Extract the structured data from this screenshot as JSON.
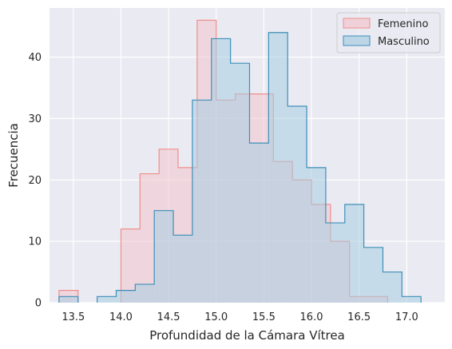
{
  "chart_data": {
    "type": "histogram",
    "xlabel": "Profundidad de la Cámara Vítrea",
    "ylabel": "Frecuencia",
    "xlim": [
      13.25,
      17.4
    ],
    "ylim": [
      0,
      48
    ],
    "xticks": [
      "13.5",
      "14.0",
      "14.5",
      "15.0",
      "15.5",
      "16.0",
      "16.5",
      "17.0"
    ],
    "yticks": [
      "0",
      "10",
      "20",
      "30",
      "40"
    ],
    "grid": true,
    "legend_position": "top-right",
    "series": [
      {
        "name": "Femenino",
        "color": "#f08f89",
        "fill": "#f2c5cd",
        "bins": [
          {
            "x0": 13.35,
            "x1": 13.55,
            "count": 2
          },
          {
            "x0": 14.0,
            "x1": 14.2,
            "count": 12
          },
          {
            "x0": 14.2,
            "x1": 14.4,
            "count": 21
          },
          {
            "x0": 14.4,
            "x1": 14.6,
            "count": 25
          },
          {
            "x0": 14.6,
            "x1": 14.8,
            "count": 22
          },
          {
            "x0": 14.8,
            "x1": 15.0,
            "count": 46
          },
          {
            "x0": 15.0,
            "x1": 15.2,
            "count": 33
          },
          {
            "x0": 15.2,
            "x1": 15.4,
            "count": 34
          },
          {
            "x0": 15.4,
            "x1": 15.6,
            "count": 34
          },
          {
            "x0": 15.6,
            "x1": 15.8,
            "count": 23
          },
          {
            "x0": 15.8,
            "x1": 16.0,
            "count": 20
          },
          {
            "x0": 16.0,
            "x1": 16.2,
            "count": 16
          },
          {
            "x0": 16.2,
            "x1": 16.4,
            "count": 10
          },
          {
            "x0": 16.4,
            "x1": 16.6,
            "count": 1
          },
          {
            "x0": 16.6,
            "x1": 16.8,
            "count": 1
          }
        ]
      },
      {
        "name": "Masculino",
        "color": "#3d8fb8",
        "fill": "#a8cde2",
        "bins": [
          {
            "x0": 13.35,
            "x1": 13.55,
            "count": 1
          },
          {
            "x0": 13.75,
            "x1": 13.95,
            "count": 1
          },
          {
            "x0": 13.95,
            "x1": 14.15,
            "count": 2
          },
          {
            "x0": 14.15,
            "x1": 14.35,
            "count": 3
          },
          {
            "x0": 14.35,
            "x1": 14.55,
            "count": 15
          },
          {
            "x0": 14.55,
            "x1": 14.75,
            "count": 11
          },
          {
            "x0": 14.75,
            "x1": 14.95,
            "count": 33
          },
          {
            "x0": 14.95,
            "x1": 15.15,
            "count": 43
          },
          {
            "x0": 15.15,
            "x1": 15.35,
            "count": 39
          },
          {
            "x0": 15.35,
            "x1": 15.55,
            "count": 26
          },
          {
            "x0": 15.55,
            "x1": 15.75,
            "count": 44
          },
          {
            "x0": 15.75,
            "x1": 15.95,
            "count": 32
          },
          {
            "x0": 15.95,
            "x1": 16.15,
            "count": 22
          },
          {
            "x0": 16.15,
            "x1": 16.35,
            "count": 13
          },
          {
            "x0": 16.35,
            "x1": 16.55,
            "count": 16
          },
          {
            "x0": 16.55,
            "x1": 16.75,
            "count": 9
          },
          {
            "x0": 16.75,
            "x1": 16.95,
            "count": 5
          },
          {
            "x0": 16.95,
            "x1": 17.15,
            "count": 1
          }
        ]
      }
    ]
  },
  "colors": {
    "plot_background": "#eaeaf2",
    "grid": "#ffffff",
    "text": "#262626"
  }
}
